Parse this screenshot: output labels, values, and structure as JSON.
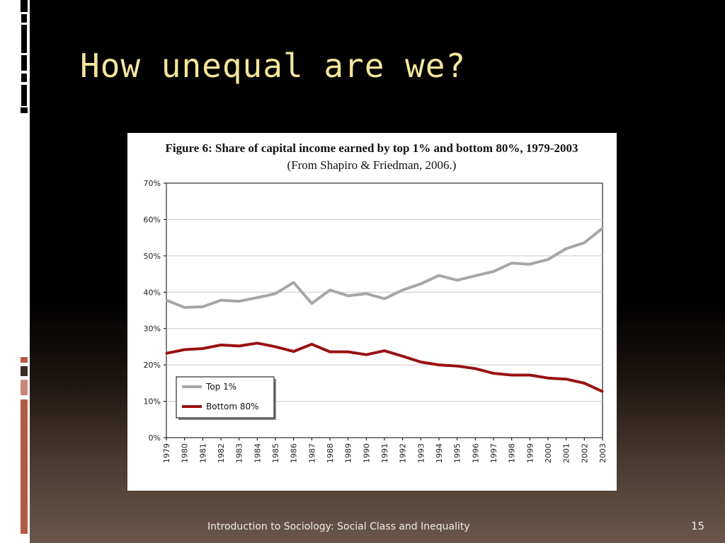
{
  "slide": {
    "title": "How unequal are we?",
    "footer": "Introduction to Sociology: Social Class and Inequality",
    "page_number": "15"
  },
  "colors": {
    "title": "#f4e59a",
    "top1": "#a6a6a6",
    "bottom80": "#9b1010",
    "accent": "#b35a44"
  },
  "chart_data": {
    "type": "line",
    "title": "Figure 6: Share of capital income earned by top 1% and bottom 80%, 1979-2003",
    "subtitle": "(From Shapiro & Friedman, 2006.)",
    "x": [
      "1979",
      "1980",
      "1981",
      "1982",
      "1983",
      "1984",
      "1985",
      "1986",
      "1987",
      "1988",
      "1989",
      "1990",
      "1991",
      "1992",
      "1993",
      "1994",
      "1995",
      "1996",
      "1997",
      "1998",
      "1999",
      "2000",
      "2001",
      "2002",
      "2003"
    ],
    "y_ticks": [
      "0%",
      "10%",
      "20%",
      "30%",
      "40%",
      "50%",
      "60%",
      "70%"
    ],
    "ylim": [
      0,
      70
    ],
    "grid": true,
    "legend_position": "bottom-left",
    "series": [
      {
        "name": "Top 1%",
        "color": "#a6a6a6",
        "values": [
          37.8,
          35.8,
          36.0,
          37.8,
          37.5,
          38.5,
          39.6,
          42.7,
          36.9,
          40.6,
          39.0,
          39.6,
          38.2,
          40.6,
          42.3,
          44.6,
          43.3,
          44.5,
          45.7,
          48.0,
          47.7,
          49.0,
          52.0,
          53.6,
          57.6
        ]
      },
      {
        "name": "Bottom 80%",
        "color": "#9b1010",
        "values": [
          23.2,
          24.2,
          24.5,
          25.5,
          25.2,
          26.0,
          25.0,
          23.7,
          25.7,
          23.6,
          23.6,
          22.8,
          23.9,
          22.4,
          20.8,
          20.0,
          19.7,
          19.0,
          17.7,
          17.2,
          17.2,
          16.4,
          16.1,
          15.0,
          12.7
        ]
      }
    ]
  }
}
